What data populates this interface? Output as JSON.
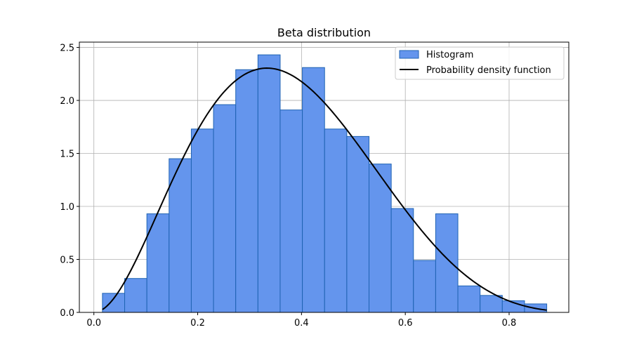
{
  "chart_data": {
    "type": "bar",
    "title": "Beta distribution",
    "xlabel": "",
    "ylabel": "",
    "xlim": [
      -0.028,
      0.915
    ],
    "ylim": [
      0,
      2.55
    ],
    "grid": true,
    "legend_position": "top-right",
    "x_ticks": [
      0.0,
      0.2,
      0.4,
      0.6,
      0.8
    ],
    "x_tick_labels": [
      "0.0",
      "0.2",
      "0.4",
      "0.6",
      "0.8"
    ],
    "y_ticks": [
      0.0,
      0.5,
      1.0,
      1.5,
      2.0,
      2.5
    ],
    "y_tick_labels": [
      "0.0",
      "0.5",
      "1.0",
      "1.5",
      "2.0",
      "2.5"
    ],
    "histogram": {
      "name": "Histogram",
      "bin_edges": [
        0.0165,
        0.0593,
        0.1021,
        0.1449,
        0.1877,
        0.2305,
        0.2733,
        0.3161,
        0.3589,
        0.4017,
        0.4445,
        0.4873,
        0.5301,
        0.5729,
        0.6157,
        0.6585,
        0.7013,
        0.7441,
        0.7869,
        0.8297,
        0.8725
      ],
      "values": [
        0.18,
        0.32,
        0.93,
        1.45,
        1.73,
        1.96,
        2.29,
        2.43,
        1.91,
        2.31,
        1.73,
        1.66,
        1.4,
        0.98,
        0.49,
        0.93,
        0.25,
        0.16,
        0.11,
        0.08
      ],
      "color": "#6495ED",
      "edge_color": "#1f63b3"
    },
    "pdf": {
      "name": "Probability density function",
      "alpha": 3,
      "beta": 5,
      "x_range": [
        0.0165,
        0.8725
      ],
      "color": "#000000"
    }
  }
}
